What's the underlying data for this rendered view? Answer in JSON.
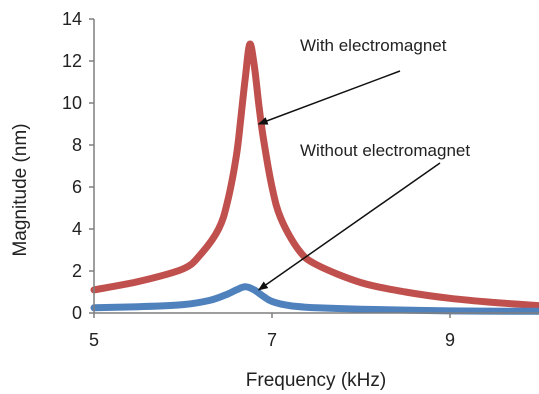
{
  "chart_data": {
    "type": "line",
    "xlabel": "Frequency (kHz)",
    "ylabel": "Magnitude (nm)",
    "xlim": [
      5,
      10
    ],
    "ylim": [
      0,
      14
    ],
    "x_ticks": [
      5,
      7,
      9
    ],
    "y_ticks": [
      0,
      2,
      4,
      6,
      8,
      10,
      12,
      14
    ],
    "grid": false,
    "series": [
      {
        "name": "With electromagnet",
        "color": "#c0504d",
        "x": [
          5.0,
          5.5,
          6.0,
          6.2,
          6.4,
          6.5,
          6.6,
          6.65,
          6.7,
          6.75,
          6.8,
          6.85,
          6.9,
          7.0,
          7.1,
          7.3,
          7.5,
          8.0,
          8.5,
          9.0,
          9.5,
          10.0
        ],
        "y": [
          1.1,
          1.5,
          2.1,
          2.8,
          4.0,
          5.3,
          7.5,
          9.3,
          11.2,
          12.8,
          11.8,
          10.0,
          8.4,
          6.0,
          4.5,
          3.0,
          2.3,
          1.45,
          1.0,
          0.7,
          0.5,
          0.35
        ]
      },
      {
        "name": "Without electromagnet",
        "color": "#4f81bd",
        "x": [
          5.0,
          5.5,
          6.0,
          6.3,
          6.5,
          6.6,
          6.7,
          6.8,
          6.9,
          7.0,
          7.2,
          7.5,
          8.0,
          9.0,
          10.0
        ],
        "y": [
          0.25,
          0.3,
          0.4,
          0.6,
          0.9,
          1.1,
          1.25,
          1.1,
          0.8,
          0.55,
          0.35,
          0.25,
          0.18,
          0.1,
          0.08
        ]
      }
    ],
    "annotations": [
      {
        "text": "With electromagnet",
        "points_to_x": 6.85,
        "points_to_y": 9.0
      },
      {
        "text": "Without electromagnet",
        "points_to_x": 6.85,
        "points_to_y": 1.1
      }
    ]
  }
}
